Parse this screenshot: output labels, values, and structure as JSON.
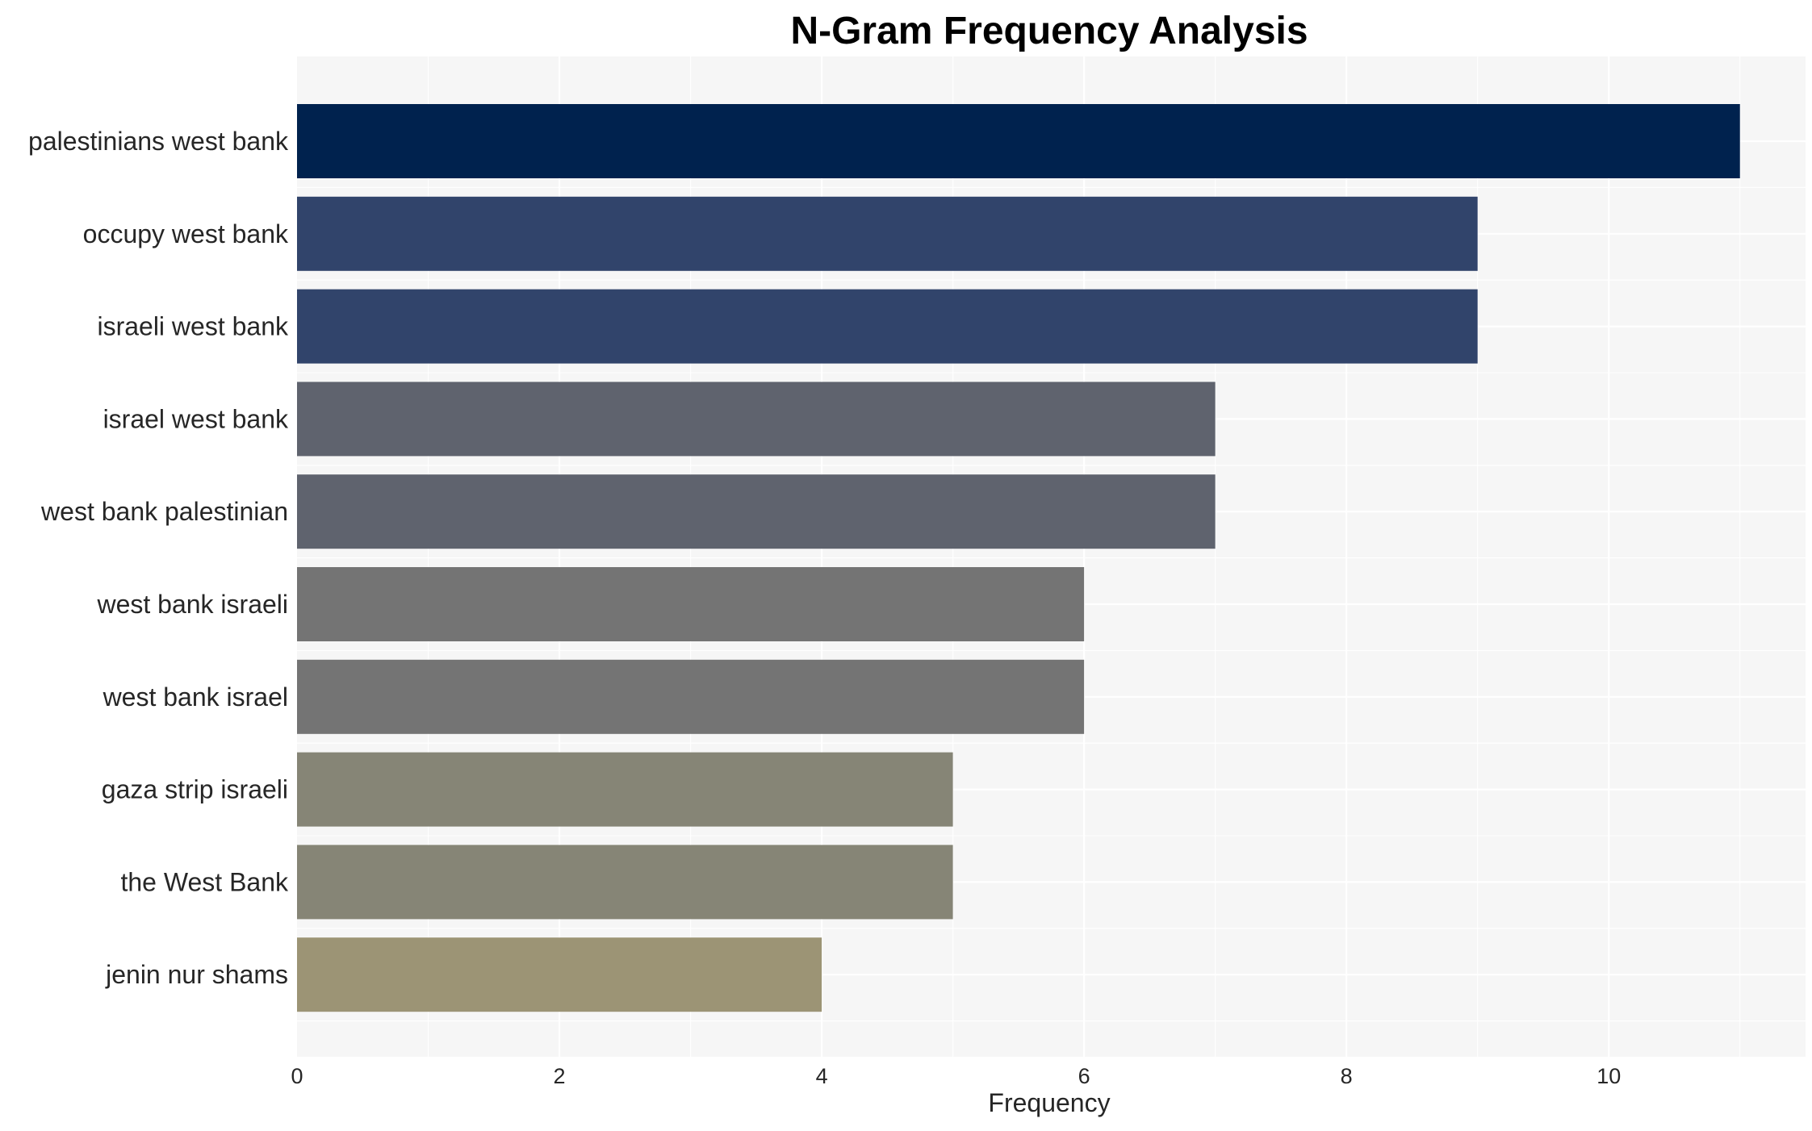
{
  "chart_data": {
    "type": "bar",
    "orientation": "horizontal",
    "title": "N-Gram Frequency Analysis",
    "xlabel": "Frequency",
    "ylabel": "",
    "xlim": [
      0,
      11.5
    ],
    "xticks": [
      0,
      2,
      4,
      6,
      8,
      10
    ],
    "grid": true,
    "categories": [
      "palestinians west bank",
      "occupy west bank",
      "israeli west bank",
      "israel west bank",
      "west bank palestinian",
      "west bank israeli",
      "west bank israel",
      "gaza strip israeli",
      "the West Bank",
      "jenin nur shams"
    ],
    "values": [
      11,
      9,
      9,
      7,
      7,
      6,
      6,
      5,
      5,
      4
    ],
    "colors": [
      "#00224e",
      "#31446b",
      "#31446b",
      "#5f636e",
      "#5f636e",
      "#747474",
      "#747474",
      "#868576",
      "#868576",
      "#9c9475"
    ],
    "plot_background": "#f6f6f6",
    "grid_color": "#ffffff"
  }
}
